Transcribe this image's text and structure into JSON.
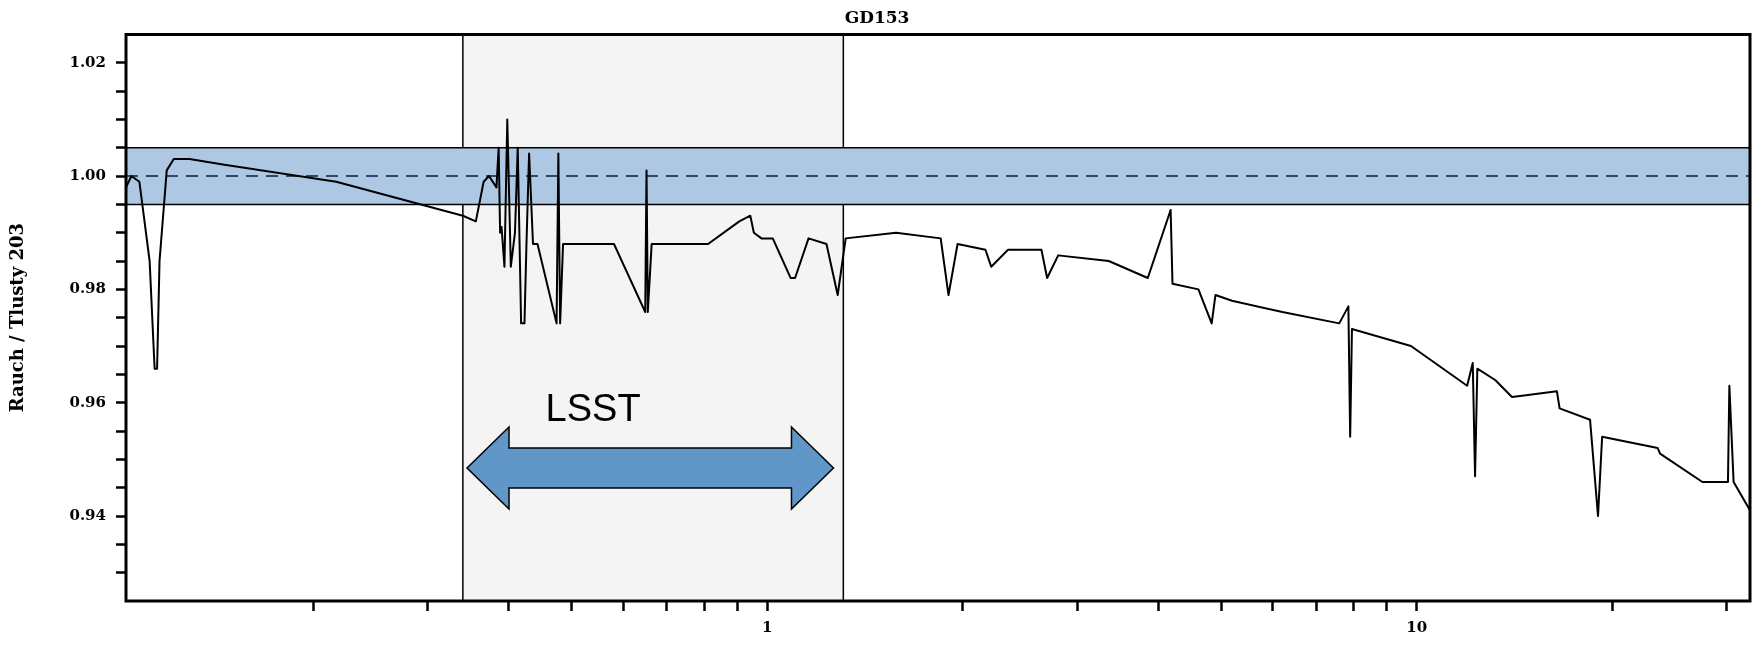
{
  "chart_data": {
    "type": "line",
    "title": "GD153",
    "ylabel": "Rauch / Tlusty 203",
    "log": "x",
    "marker": "none",
    "line_style": "solid",
    "x": [
      0.103,
      0.105,
      0.108,
      0.112,
      0.114,
      0.115,
      0.116,
      0.119,
      0.122,
      0.129,
      0.146,
      0.217,
      0.34,
      0.356,
      0.366,
      0.373,
      0.383,
      0.386,
      0.388,
      0.39,
      0.394,
      0.398,
      0.403,
      0.409,
      0.413,
      0.418,
      0.423,
      0.426,
      0.43,
      0.436,
      0.443,
      0.474,
      0.477,
      0.48,
      0.485,
      0.581,
      0.649,
      0.652,
      0.655,
      0.664,
      0.811,
      0.906,
      0.942,
      0.954,
      0.98,
      1.02,
      1.087,
      1.104,
      1.158,
      1.234,
      1.284,
      1.321,
      1.579,
      1.85,
      1.902,
      1.964,
      2.168,
      2.213,
      2.349,
      2.644,
      2.698,
      2.806,
      3.357,
      3.855,
      4.18,
      4.208,
      4.613,
      4.835,
      4.9,
      5.196,
      6.213,
      7.6,
      7.85,
      7.9,
      7.95,
      9.8,
      11.96,
      12.2,
      12.3,
      12.4,
      13.21,
      14.02,
      16.44,
      16.6,
      18.49,
      19.02,
      19.3,
      23.5,
      23.7,
      27.54,
      30.15,
      30.3,
      30.76,
      32.6
    ],
    "series": [
      {
        "color": "#000000",
        "values": [
          0.998,
          1.0,
          0.999,
          0.985,
          0.966,
          0.966,
          0.985,
          1.001,
          1.003,
          1.003,
          1.002,
          0.999,
          0.993,
          0.992,
          0.999,
          1.0,
          0.998,
          1.005,
          0.99,
          0.991,
          0.984,
          1.01,
          0.984,
          0.99,
          1.005,
          0.974,
          0.974,
          0.988,
          1.004,
          0.988,
          0.988,
          0.974,
          1.004,
          0.974,
          0.988,
          0.988,
          0.976,
          1.001,
          0.976,
          0.988,
          0.988,
          0.992,
          0.993,
          0.99,
          0.989,
          0.989,
          0.982,
          0.982,
          0.989,
          0.988,
          0.979,
          0.989,
          0.99,
          0.989,
          0.979,
          0.988,
          0.987,
          0.984,
          0.987,
          0.987,
          0.982,
          0.986,
          0.985,
          0.982,
          0.994,
          0.981,
          0.98,
          0.974,
          0.979,
          0.978,
          0.976,
          0.974,
          0.977,
          0.954,
          0.973,
          0.97,
          0.963,
          0.967,
          0.947,
          0.966,
          0.964,
          0.961,
          0.962,
          0.959,
          0.957,
          0.94,
          0.954,
          0.952,
          0.951,
          0.946,
          0.946,
          0.963,
          0.946,
          0.941
        ]
      }
    ],
    "xlim": [
      0.103,
      32.6
    ],
    "ylim": [
      0.925,
      1.025
    ],
    "xticks": [
      {
        "value": 0.2,
        "label": null
      },
      {
        "value": 0.3,
        "label": null
      },
      {
        "value": 0.4,
        "label": null
      },
      {
        "value": 0.5,
        "label": null
      },
      {
        "value": 0.6,
        "label": null
      },
      {
        "value": 0.7,
        "label": null
      },
      {
        "value": 0.8,
        "label": null
      },
      {
        "value": 0.9,
        "label": null
      },
      1,
      {
        "value": 2,
        "label": null
      },
      {
        "value": 3,
        "label": null
      },
      {
        "value": 4,
        "label": null
      },
      {
        "value": 5,
        "label": null
      },
      {
        "value": 6,
        "label": null
      },
      {
        "value": 7,
        "label": null
      },
      {
        "value": 8,
        "label": null
      },
      {
        "value": 9,
        "label": null
      },
      10,
      {
        "value": 20,
        "label": null
      },
      {
        "value": 30,
        "label": null
      }
    ],
    "yticks": [
      {
        "value": 0.93,
        "label": null
      },
      {
        "value": 0.935,
        "label": null
      },
      0.94,
      {
        "value": 0.945,
        "label": null
      },
      {
        "value": 0.95,
        "label": null
      },
      {
        "value": 0.955,
        "label": null
      },
      0.96,
      {
        "value": 0.965,
        "label": null
      },
      {
        "value": 0.97,
        "label": null
      },
      {
        "value": 0.975,
        "label": null
      },
      0.98,
      {
        "value": 0.985,
        "label": null
      },
      {
        "value": 0.99,
        "label": null
      },
      {
        "value": 0.995,
        "label": null
      },
      {
        "value": 1,
        "label": "1.00"
      },
      {
        "value": 1.005,
        "label": null
      },
      {
        "value": 1.01,
        "label": null
      },
      {
        "value": 1.015,
        "label": null
      },
      1.02
    ],
    "ref_lines": [
      {
        "axis": "y",
        "value": 1,
        "color": "#2e4a66",
        "line_style": "dashed"
      }
    ],
    "bands": [
      {
        "axis": "x",
        "from": 0.34,
        "to": 1.31,
        "color": "#f4f4f4"
      },
      {
        "axis": "y",
        "from": 0.995,
        "to": 1.005,
        "color": "#aec8e3"
      }
    ],
    "annotations": [
      "LSST"
    ]
  }
}
